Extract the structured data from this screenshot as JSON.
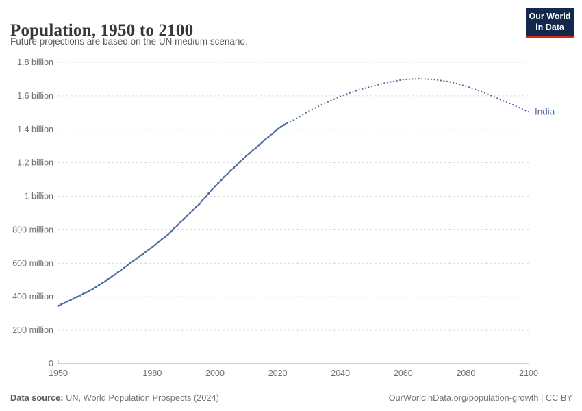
{
  "header": {
    "title": "Population, 1950 to 2100",
    "subtitle": "Future projections are based on the UN medium scenario.",
    "logo": {
      "line1": "Our World",
      "line2": "in Data",
      "bg_color": "#12294b",
      "accent_color": "#d7271d"
    }
  },
  "chart_data": {
    "type": "line",
    "title": "Population, 1950 to 2100",
    "subtitle": "Future projections are based on the UN medium scenario.",
    "unit": "people",
    "grid": "dashed-horizontal",
    "legend_position": "end-of-line-label",
    "x": {
      "label": "",
      "range": [
        1950,
        2100
      ],
      "ticks": [
        1950,
        1980,
        2000,
        2020,
        2040,
        2060,
        2080,
        2100
      ]
    },
    "y": {
      "label": "",
      "range": [
        0,
        1.8
      ],
      "ticks": [
        {
          "v": 0,
          "label": "0"
        },
        {
          "v": 0.2,
          "label": "200 million"
        },
        {
          "v": 0.4,
          "label": "400 million"
        },
        {
          "v": 0.6,
          "label": "600 million"
        },
        {
          "v": 0.8,
          "label": "800 million"
        },
        {
          "v": 1.0,
          "label": "1 billion"
        },
        {
          "v": 1.2,
          "label": "1.2 billion"
        },
        {
          "v": 1.4,
          "label": "1.4 billion"
        },
        {
          "v": 1.6,
          "label": "1.6 billion"
        },
        {
          "v": 1.8,
          "label": "1.8 billion"
        }
      ]
    },
    "series": [
      {
        "name": "India",
        "color": "#4C6A9C",
        "projection_from": 2023,
        "value_unit": "billions",
        "years": [
          1950,
          1955,
          1960,
          1965,
          1970,
          1975,
          1980,
          1985,
          1990,
          1995,
          2000,
          2005,
          2010,
          2015,
          2020,
          2023,
          2025,
          2030,
          2035,
          2040,
          2045,
          2050,
          2055,
          2060,
          2065,
          2070,
          2075,
          2080,
          2085,
          2090,
          2095,
          2100
        ],
        "values": [
          0.346,
          0.39,
          0.436,
          0.492,
          0.558,
          0.629,
          0.697,
          0.771,
          0.864,
          0.954,
          1.06,
          1.154,
          1.241,
          1.322,
          1.402,
          1.438,
          1.455,
          1.509,
          1.556,
          1.597,
          1.63,
          1.657,
          1.68,
          1.697,
          1.702,
          1.697,
          1.683,
          1.658,
          1.625,
          1.586,
          1.546,
          1.505
        ]
      }
    ]
  },
  "footer": {
    "data_source_label": "Data source:",
    "data_source_text": " UN, World Population Prospects (2024)",
    "link_text": "OurWorldinData.org/population-growth | CC BY"
  }
}
